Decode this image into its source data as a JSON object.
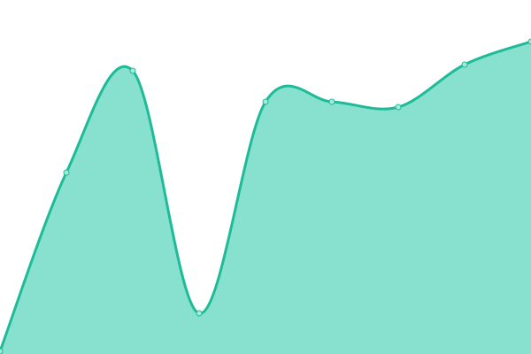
{
  "chart_data": {
    "type": "area",
    "title": "",
    "xlabel": "",
    "ylabel": "",
    "x": [
      0,
      1,
      2,
      3,
      4,
      5,
      6,
      7,
      8
    ],
    "values": [
      3,
      205,
      320,
      46,
      285,
      285,
      279,
      327,
      353
    ],
    "ylim": [
      0,
      400
    ],
    "grid": false,
    "legend": "none",
    "smooth": true,
    "colors": {
      "line": "#1dbb97",
      "fill": "#88e0cf",
      "point_fill": "#a8ead9"
    }
  }
}
